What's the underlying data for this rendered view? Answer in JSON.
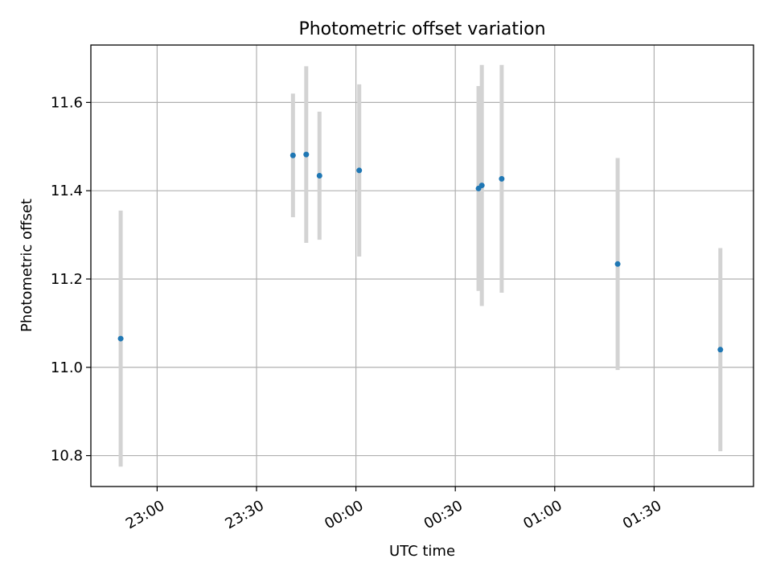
{
  "chart_data": {
    "type": "scatter",
    "title": "Photometric offset variation",
    "xlabel": "UTC time",
    "ylabel": "Photometric offset",
    "xlim": [
      "22:40",
      "02:00"
    ],
    "ylim": [
      10.73,
      11.73
    ],
    "xticks": [
      "23:00",
      "23:30",
      "00:00",
      "00:30",
      "01:00",
      "01:30"
    ],
    "yticks": [
      "10.8",
      "11.0",
      "11.2",
      "11.4",
      "11.6"
    ],
    "grid": true,
    "point_color": "#1f77b4",
    "errorbar_color": "#d3d3d3",
    "points": [
      {
        "x": "22:49",
        "y": 11.065,
        "yerr": 0.29
      },
      {
        "x": "23:41",
        "y": 11.48,
        "yerr": 0.14
      },
      {
        "x": "23:45",
        "y": 11.482,
        "yerr": 0.2
      },
      {
        "x": "23:49",
        "y": 11.434,
        "yerr": 0.145
      },
      {
        "x": "00:01",
        "y": 11.446,
        "yerr": 0.195
      },
      {
        "x": "00:37",
        "y": 11.405,
        "yerr": 0.232
      },
      {
        "x": "00:38",
        "y": 11.412,
        "yerr": 0.273
      },
      {
        "x": "00:44",
        "y": 11.427,
        "yerr": 0.258
      },
      {
        "x": "01:19",
        "y": 11.234,
        "yerr": 0.24
      },
      {
        "x": "01:50",
        "y": 11.04,
        "yerr": 0.23
      }
    ]
  }
}
